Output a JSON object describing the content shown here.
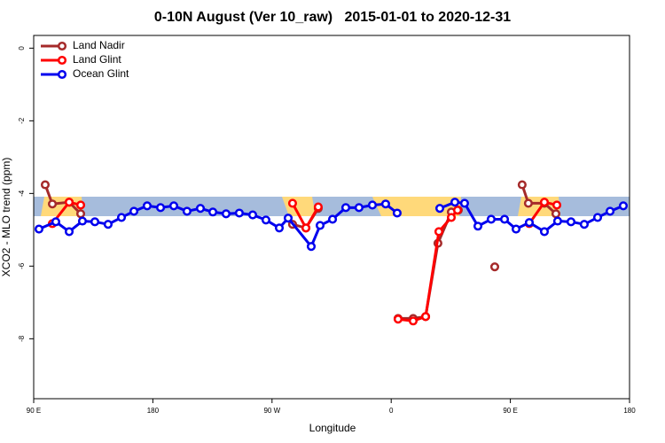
{
  "chart_data": {
    "type": "line",
    "title": "0-10N August (Ver 10_raw)   2015-01-01 to 2020-12-31",
    "x_label": "Longitude",
    "y_label": "XCO2 - MLO trend (ppm)",
    "xlim": [
      90,
      540
    ],
    "xticks": [
      {
        "value": 90,
        "label": "90 E"
      },
      180,
      {
        "value": 270,
        "label": "90 W"
      },
      {
        "value": 360,
        "label": "0"
      },
      {
        "value": 450,
        "label": "90 E"
      },
      {
        "value": 540,
        "label": "180"
      }
    ],
    "ylim": [
      -9.65,
      0.35
    ],
    "yticks": [
      0,
      -2,
      -4,
      -6,
      -8
    ],
    "grid": false,
    "legend": "top-left",
    "series": [
      {
        "name": "Land Nadir",
        "color": "#a52a2a",
        "x": [
          98.7,
          104.1,
          116.8,
          125.5,
          200,
          285.5,
          295.6,
          304.9,
          340,
          365.2,
          376.6,
          386,
          395.3,
          405.4,
          410.7,
          420,
          438.2,
          445,
          458.9,
          463.6,
          475.7,
          484.4
        ],
        "values": [
          -3.76,
          -4.29,
          -4.24,
          -4.56,
          null,
          -4.85,
          -4.95,
          -4.41,
          null,
          -7.44,
          -7.44,
          -7.39,
          -5.37,
          -4.51,
          -4.46,
          null,
          -6.02,
          null,
          -3.76,
          -4.27,
          -4.27,
          -4.56
        ]
      },
      {
        "name": "Land Glint",
        "color": "#ff0000",
        "x": [
          104.1,
          116.8,
          125.5,
          200,
          285.5,
          295.6,
          304.9,
          340,
          365.2,
          376.6,
          386,
          396,
          405.4,
          410.1,
          440,
          464.3,
          475.7,
          485.1
        ],
        "values": [
          -4.83,
          -4.24,
          -4.32,
          null,
          -4.27,
          -4.95,
          -4.37,
          null,
          -7.46,
          -7.51,
          -7.39,
          -5.05,
          -4.66,
          -4.46,
          null,
          -4.83,
          -4.24,
          -4.32
        ]
      },
      {
        "name": "Ocean Glint",
        "color": "#0000ee",
        "x": [
          94,
          106.7,
          116.8,
          126.8,
          136.2,
          146.2,
          156.3,
          165.7,
          175.7,
          185.8,
          195.8,
          205.8,
          215.9,
          225.3,
          235.3,
          245.3,
          255.4,
          265.4,
          275.5,
          282.2,
          299.6,
          306.3,
          315.7,
          325.7,
          335.7,
          345.8,
          355.8,
          364.5,
          380,
          396.7,
          408.1,
          415.4,
          425.5,
          435.5,
          445.6,
          454.3,
          464.3,
          475.7,
          485.7,
          495.8,
          505.8,
          515.9,
          525.3,
          535.3
        ],
        "values": [
          -4.98,
          -4.78,
          -5.05,
          -4.76,
          -4.78,
          -4.85,
          -4.66,
          -4.49,
          -4.34,
          -4.39,
          -4.34,
          -4.49,
          -4.41,
          -4.51,
          -4.56,
          -4.54,
          -4.59,
          -4.73,
          -4.95,
          -4.68,
          -5.46,
          -4.88,
          -4.71,
          -4.39,
          -4.39,
          -4.32,
          -4.29,
          -4.54,
          null,
          -4.41,
          -4.24,
          -4.27,
          -4.9,
          -4.71,
          -4.71,
          -4.98,
          -4.8,
          -5.05,
          -4.76,
          -4.78,
          -4.85,
          -4.66,
          -4.49,
          -4.34
        ]
      }
    ]
  }
}
